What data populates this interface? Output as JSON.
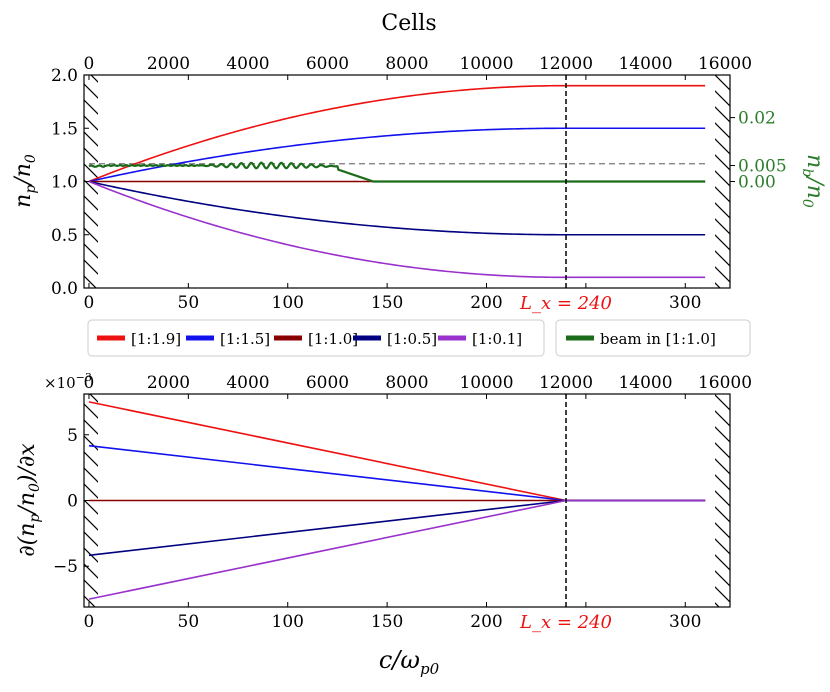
{
  "chart_data": [
    {
      "type": "line",
      "panel": "top",
      "title": "Cells",
      "xlabel": "c/ω_p0",
      "ylabel": "n_p/n_0",
      "ylabel_right": "n_b/n_0",
      "xlim": [
        -2.5,
        322.5
      ],
      "ylim": [
        0.0,
        2.0
      ],
      "x_ticks": [
        0,
        50,
        100,
        150,
        200,
        250,
        300
      ],
      "x_tick_labels": [
        "0",
        "50",
        "100",
        "150",
        "200",
        "",
        "300"
      ],
      "top_ticks": [
        0,
        2000,
        4000,
        6000,
        8000,
        10000,
        12000,
        14000,
        16000
      ],
      "top_tick_labels": [
        "0",
        "2000",
        "4000",
        "6000",
        "8000",
        "10000",
        "12000",
        "14000",
        "16000"
      ],
      "y_ticks": [
        0.0,
        0.5,
        1.0,
        1.5,
        2.0
      ],
      "y_tick_labels": [
        "0.0",
        "0.5",
        "1.0",
        "1.5",
        "2.0"
      ],
      "right_ticks": [
        {
          "value": 0.02,
          "label": "0.02"
        },
        {
          "value": 0.005,
          "label": "0.005"
        },
        {
          "value": 0.0,
          "label": "0.00"
        }
      ],
      "right_axis_note": "right axis: 0.00 aligned with n_p/n_0 = 1.0, 0.02 aligned with n_p/n_0 = 1.6",
      "right_color": "#2b7d2b",
      "cells_per_unit": 50,
      "vline": {
        "x": 240,
        "label": "L_x = 240"
      },
      "wall_left": [
        -2.5,
        0
      ],
      "wall_right": [
        310,
        322.5
      ],
      "hline_dashed": {
        "y": 1.1667
      },
      "series": [
        {
          "name": "[1:1.9]",
          "color": "#ee1111",
          "start": 1.0,
          "plateau": 1.9,
          "x_plateau": 240,
          "x_end": 310
        },
        {
          "name": "[1:1.5]",
          "color": "#1111ee",
          "start": 1.0,
          "plateau": 1.5,
          "x_plateau": 240,
          "x_end": 310
        },
        {
          "name": "[1:1.0]",
          "color": "#880000",
          "start": 1.0,
          "plateau": 1.0,
          "x_plateau": 240,
          "x_end": 310
        },
        {
          "name": "[1:0.5]",
          "color": "#000080",
          "start": 1.0,
          "plateau": 0.5,
          "x_plateau": 240,
          "x_end": 310
        },
        {
          "name": "[1:0.1]",
          "color": "#9932cc",
          "start": 1.0,
          "plateau": 0.1,
          "x_plateau": 240,
          "x_end": 310
        }
      ],
      "beam": {
        "name": "beam in [1:1.0]",
        "color": "#1a6b1a",
        "plateau_nb": 0.005,
        "ripple_start_x": 55,
        "ripple_end_x": 125,
        "drop_end_x": 143,
        "x_end": 310
      },
      "legend": {
        "placement": "below-top-panel",
        "entries": [
          {
            "label": "[1:1.9]",
            "color": "#ee1111"
          },
          {
            "label": "[1:1.5]",
            "color": "#1111ee"
          },
          {
            "label": "[1:1.0]",
            "color": "#880000"
          },
          {
            "label": "[1:0.5]",
            "color": "#000080"
          },
          {
            "label": "[1:0.1]",
            "color": "#9932cc"
          }
        ],
        "beam_entry": {
          "label": "beam in [1:1.0]",
          "color": "#1a6b1a"
        }
      }
    },
    {
      "type": "line",
      "panel": "bottom",
      "xlabel": "c/ω_p0",
      "ylabel": "∂(n_p/n_0)/∂x",
      "scale_label": "×10^-3",
      "xlim": [
        -2.5,
        322.5
      ],
      "ylim": [
        -0.0081,
        0.0081
      ],
      "x_ticks": [
        0,
        50,
        100,
        150,
        200,
        250,
        300
      ],
      "x_tick_labels": [
        "0",
        "50",
        "100",
        "150",
        "200",
        "",
        "300"
      ],
      "top_ticks": [
        0,
        2000,
        4000,
        6000,
        8000,
        10000,
        12000,
        14000,
        16000
      ],
      "top_tick_labels": [
        "0",
        "2000",
        "4000",
        "6000",
        "8000",
        "10000",
        "12000",
        "14000",
        "16000"
      ],
      "y_ticks": [
        -0.005,
        0.0,
        0.005
      ],
      "y_tick_labels": [
        "−5",
        "0",
        "5"
      ],
      "vline": {
        "x": 240,
        "label": "L_x = 240"
      },
      "wall_left": [
        -2.5,
        0
      ],
      "wall_right": [
        310,
        322.5
      ],
      "series": [
        {
          "name": "[1:1.9]",
          "color": "#ee1111",
          "y0": 0.0075,
          "x_zero": 240,
          "x_end": 310
        },
        {
          "name": "[1:1.5]",
          "color": "#1111ee",
          "y0": 0.00417,
          "x_zero": 240,
          "x_end": 310
        },
        {
          "name": "[1:1.0]",
          "color": "#880000",
          "y0": 0.0,
          "x_zero": 240,
          "x_end": 310
        },
        {
          "name": "[1:0.5]",
          "color": "#000080",
          "y0": -0.00417,
          "x_zero": 240,
          "x_end": 310
        },
        {
          "name": "[1:0.1]",
          "color": "#9932cc",
          "y0": -0.0075,
          "x_zero": 240,
          "x_end": 310
        }
      ]
    }
  ]
}
